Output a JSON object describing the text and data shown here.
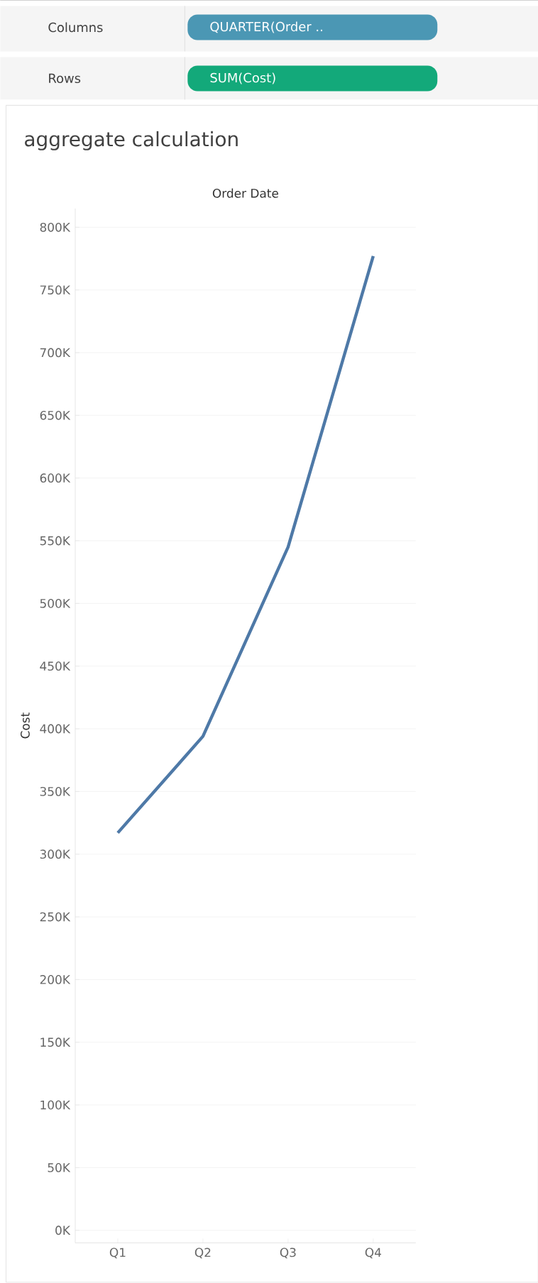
{
  "chart_data": {
    "type": "line",
    "title": "aggregate calculation",
    "xlabel": "Order Date",
    "ylabel": "Cost",
    "annotations": [
      "Columns",
      "QUARTER(Order ..",
      "Rows",
      "SUM(Cost)"
    ],
    "categories": [
      "Q1",
      "Q2",
      "Q3",
      "Q4"
    ],
    "series": [
      {
        "color": "#4e79a7",
        "values": [
          317000,
          394000,
          545000,
          777000
        ]
      }
    ],
    "ylim": [
      -10000,
      815000
    ],
    "yticks": [
      {
        "value": 0,
        "label": "0K"
      },
      {
        "value": 50000,
        "label": "50K"
      },
      {
        "value": 100000,
        "label": "100K"
      },
      {
        "value": 150000,
        "label": "150K"
      },
      {
        "value": 200000,
        "label": "200K"
      },
      {
        "value": 250000,
        "label": "250K"
      },
      {
        "value": 300000,
        "label": "300K"
      },
      {
        "value": 350000,
        "label": "350K"
      },
      {
        "value": 400000,
        "label": "400K"
      },
      {
        "value": 450000,
        "label": "450K"
      },
      {
        "value": 500000,
        "label": "500K"
      },
      {
        "value": 550000,
        "label": "550K"
      },
      {
        "value": 600000,
        "label": "600K"
      },
      {
        "value": 650000,
        "label": "650K"
      },
      {
        "value": 700000,
        "label": "700K"
      },
      {
        "value": 750000,
        "label": "750K"
      },
      {
        "value": 800000,
        "label": "800K"
      }
    ],
    "grid": "y",
    "marker": "none",
    "line_style": "solid"
  }
}
